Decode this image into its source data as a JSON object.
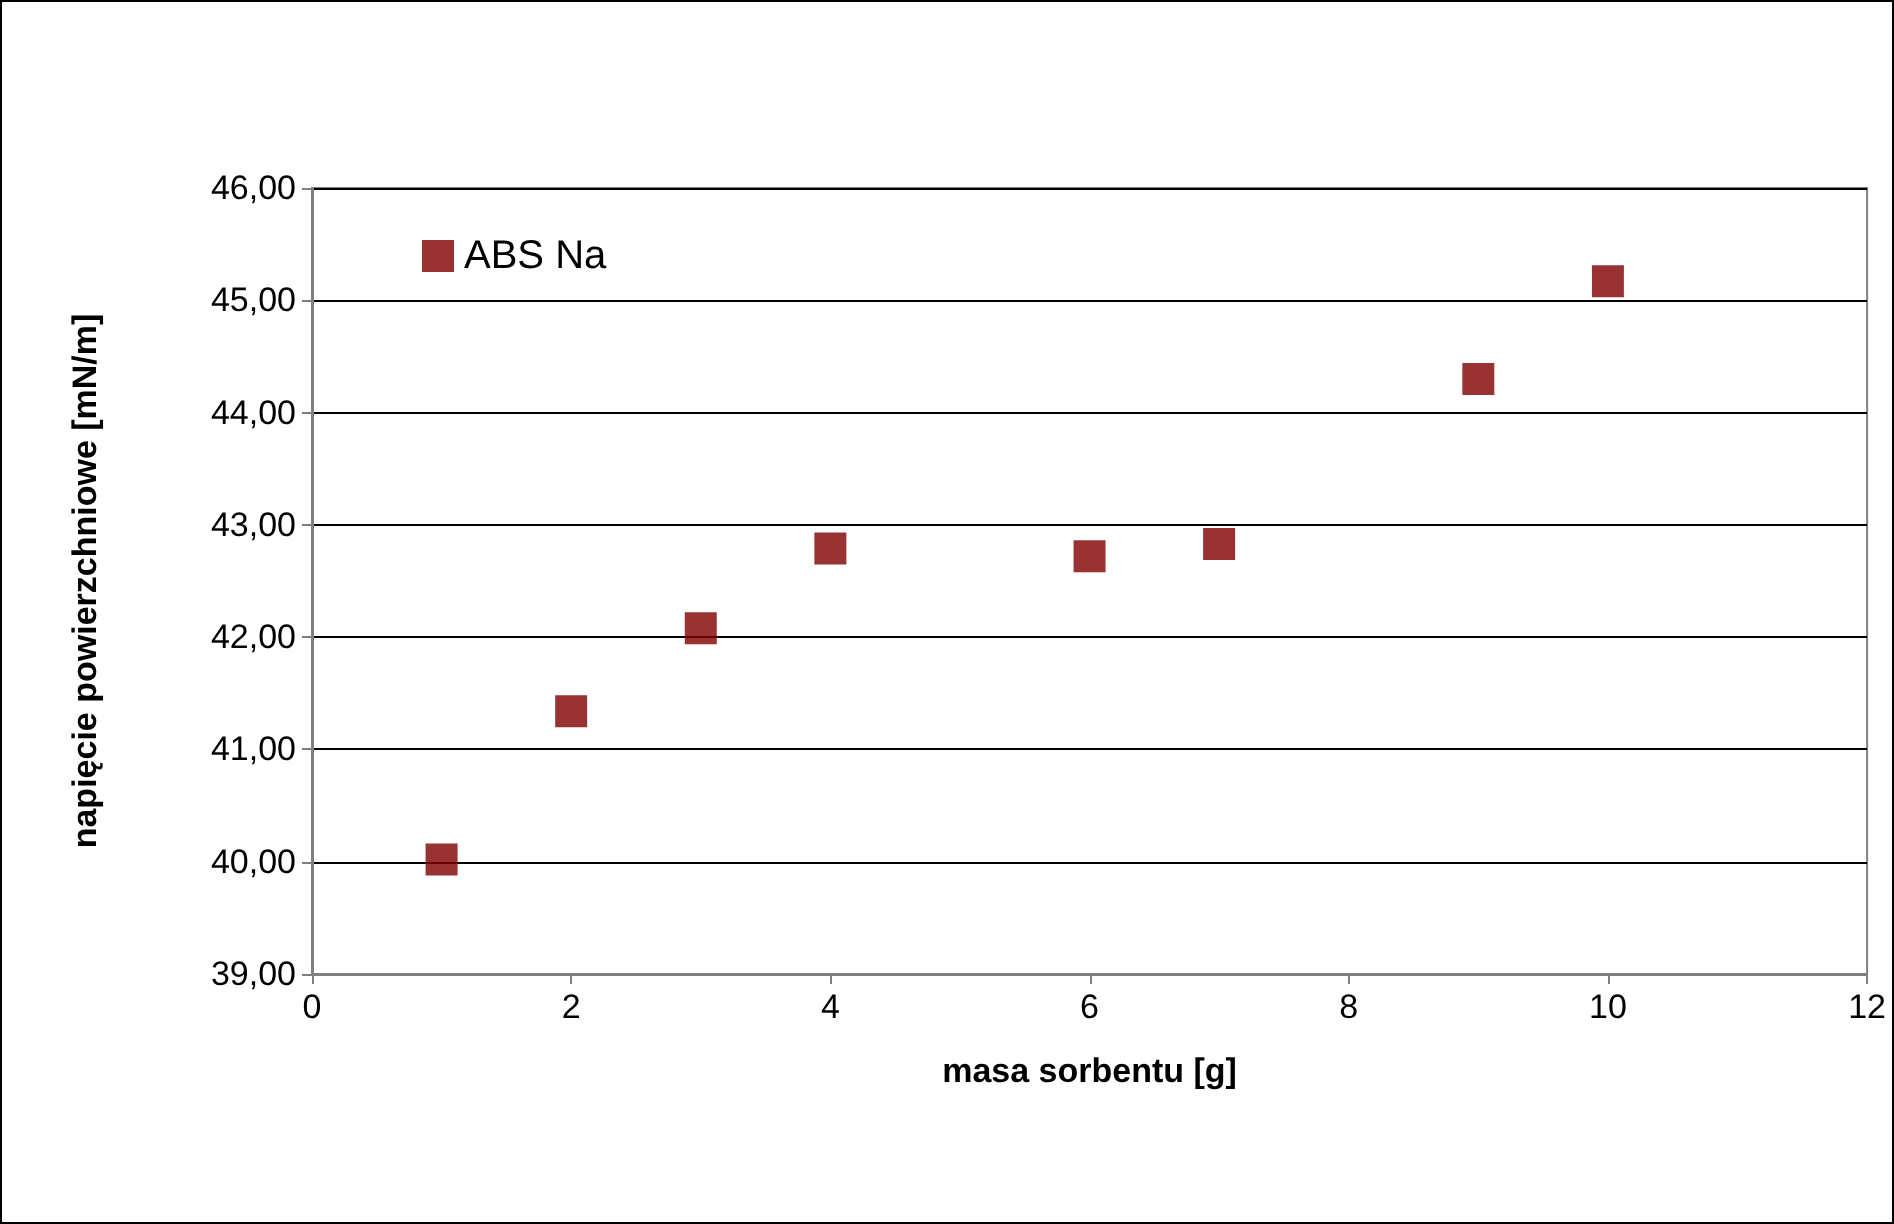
{
  "chart_data": {
    "type": "scatter",
    "xlabel": "masa sorbentu [g]",
    "ylabel": "napięcie powierzchniowe [mN/m]",
    "x": [
      1,
      2,
      3,
      4,
      6,
      7,
      9,
      10
    ],
    "series": [
      {
        "name": "ABS Na",
        "color": "#800000",
        "values": [
          40.02,
          41.34,
          42.08,
          42.79,
          42.72,
          42.83,
          44.3,
          45.17
        ]
      }
    ],
    "xlim": [
      0,
      12
    ],
    "xticks": [
      0,
      2,
      4,
      6,
      8,
      10,
      12
    ],
    "ylim": [
      39,
      46
    ],
    "yticks": [
      {
        "value": 39,
        "label": "39,00"
      },
      {
        "value": 40,
        "label": "40,00"
      },
      {
        "value": 41,
        "label": "41,00"
      },
      {
        "value": 42,
        "label": "42,00"
      },
      {
        "value": 43,
        "label": "43,00"
      },
      {
        "value": 44,
        "label": "44,00"
      },
      {
        "value": 45,
        "label": "45,00"
      },
      {
        "value": 46,
        "label": "46,00"
      }
    ],
    "grid": "y",
    "legend": "top left",
    "marker": "square"
  }
}
